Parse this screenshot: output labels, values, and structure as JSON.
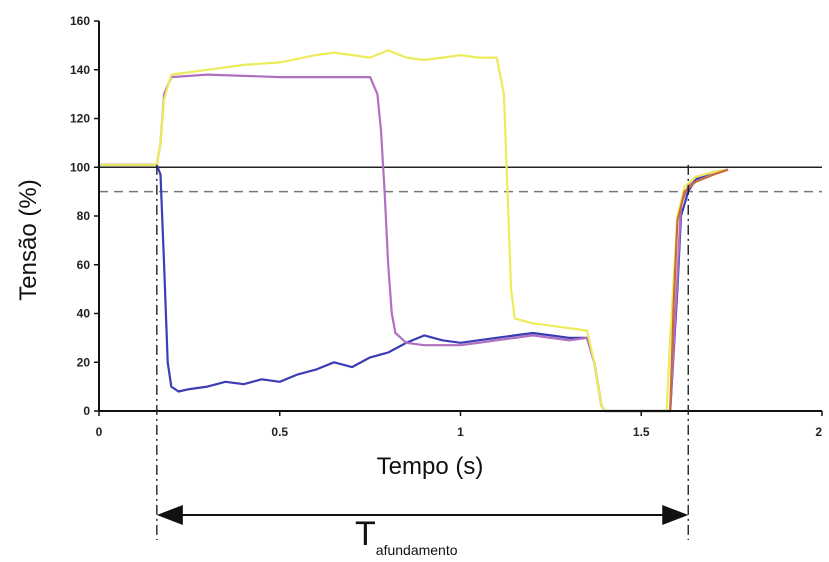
{
  "chart_data": {
    "type": "line",
    "xlabel": "Tempo (s)",
    "ylabel": "Tensão (%)",
    "xlim": [
      0,
      2
    ],
    "ylim": [
      0,
      160
    ],
    "xticks": [
      {
        "v": 0,
        "label": "0"
      },
      {
        "v": 0.5,
        "label": "0.5"
      },
      {
        "v": 1,
        "label": "1"
      },
      {
        "v": 1.5,
        "label": "1.5"
      },
      {
        "v": 2,
        "label": "2"
      }
    ],
    "yticks": [
      {
        "v": 0,
        "label": "0"
      },
      {
        "v": 20,
        "label": "20"
      },
      {
        "v": 40,
        "label": "40"
      },
      {
        "v": 60,
        "label": "60"
      },
      {
        "v": 80,
        "label": "80"
      },
      {
        "v": 100,
        "label": "100"
      },
      {
        "v": 120,
        "label": "120"
      },
      {
        "v": 140,
        "label": "140"
      },
      {
        "v": 160,
        "label": "160"
      }
    ],
    "reference_lines": [
      {
        "value": 100,
        "style": "solid",
        "color": "#222222"
      },
      {
        "value": 90,
        "style": "dashed",
        "color": "#777777"
      }
    ],
    "markers": {
      "start": 0.16,
      "end": 1.63
    },
    "duration_label": {
      "main": "T",
      "subscript": "afundamento"
    },
    "series": [
      {
        "color": "#3c3cb4",
        "points": [
          [
            0,
            101
          ],
          [
            0.1,
            101
          ],
          [
            0.16,
            101
          ],
          [
            0.17,
            97
          ],
          [
            0.18,
            60
          ],
          [
            0.19,
            20
          ],
          [
            0.2,
            10
          ],
          [
            0.22,
            8
          ],
          [
            0.25,
            9
          ],
          [
            0.3,
            10
          ],
          [
            0.35,
            12
          ],
          [
            0.4,
            11
          ],
          [
            0.45,
            13
          ],
          [
            0.5,
            12
          ],
          [
            0.55,
            15
          ],
          [
            0.6,
            17
          ],
          [
            0.65,
            20
          ],
          [
            0.7,
            18
          ],
          [
            0.75,
            22
          ],
          [
            0.8,
            24
          ],
          [
            0.85,
            28
          ],
          [
            0.9,
            31
          ],
          [
            0.95,
            29
          ],
          [
            1.0,
            28
          ],
          [
            1.05,
            29
          ],
          [
            1.1,
            30
          ],
          [
            1.15,
            31
          ],
          [
            1.2,
            32
          ],
          [
            1.25,
            31
          ],
          [
            1.3,
            30
          ],
          [
            1.35,
            30
          ],
          [
            1.37,
            20
          ],
          [
            1.39,
            2
          ],
          [
            1.4,
            0
          ],
          [
            1.58,
            0
          ],
          [
            1.6,
            50
          ],
          [
            1.61,
            80
          ],
          [
            1.63,
            90
          ],
          [
            1.65,
            95
          ],
          [
            1.7,
            98
          ],
          [
            1.74,
            99
          ]
        ]
      },
      {
        "color": "#b070c0",
        "points": [
          [
            0,
            101
          ],
          [
            0.1,
            101
          ],
          [
            0.16,
            101
          ],
          [
            0.17,
            110
          ],
          [
            0.18,
            130
          ],
          [
            0.2,
            137
          ],
          [
            0.3,
            138
          ],
          [
            0.5,
            137
          ],
          [
            0.7,
            137
          ],
          [
            0.75,
            137
          ],
          [
            0.77,
            130
          ],
          [
            0.78,
            115
          ],
          [
            0.79,
            90
          ],
          [
            0.8,
            60
          ],
          [
            0.81,
            40
          ],
          [
            0.82,
            32
          ],
          [
            0.85,
            28
          ],
          [
            0.9,
            27
          ],
          [
            1.0,
            27
          ],
          [
            1.05,
            28
          ],
          [
            1.1,
            29
          ],
          [
            1.15,
            30
          ],
          [
            1.2,
            31
          ],
          [
            1.25,
            30
          ],
          [
            1.3,
            29
          ],
          [
            1.35,
            30
          ],
          [
            1.37,
            20
          ],
          [
            1.39,
            2
          ],
          [
            1.4,
            0
          ],
          [
            1.58,
            0
          ],
          [
            1.6,
            55
          ],
          [
            1.61,
            85
          ],
          [
            1.63,
            92
          ],
          [
            1.65,
            96
          ],
          [
            1.7,
            98
          ],
          [
            1.74,
            99
          ]
        ]
      },
      {
        "color": "#ecec5a",
        "points": [
          [
            0,
            101
          ],
          [
            0.1,
            101
          ],
          [
            0.16,
            101
          ],
          [
            0.17,
            110
          ],
          [
            0.18,
            128
          ],
          [
            0.2,
            138
          ],
          [
            0.3,
            140
          ],
          [
            0.4,
            142
          ],
          [
            0.5,
            143
          ],
          [
            0.6,
            146
          ],
          [
            0.65,
            147
          ],
          [
            0.7,
            146
          ],
          [
            0.75,
            145
          ],
          [
            0.8,
            148
          ],
          [
            0.85,
            145
          ],
          [
            0.9,
            144
          ],
          [
            0.95,
            145
          ],
          [
            1.0,
            146
          ],
          [
            1.05,
            145
          ],
          [
            1.1,
            145
          ],
          [
            1.12,
            130
          ],
          [
            1.13,
            90
          ],
          [
            1.14,
            50
          ],
          [
            1.15,
            38
          ],
          [
            1.2,
            36
          ],
          [
            1.25,
            35
          ],
          [
            1.3,
            34
          ],
          [
            1.35,
            33
          ],
          [
            1.37,
            20
          ],
          [
            1.39,
            2
          ],
          [
            1.4,
            0
          ],
          [
            1.57,
            0
          ],
          [
            1.58,
            30
          ],
          [
            1.6,
            80
          ],
          [
            1.62,
            92
          ],
          [
            1.65,
            96
          ],
          [
            1.7,
            98
          ],
          [
            1.74,
            99
          ]
        ]
      },
      {
        "color": "#c86a3c",
        "points": [
          [
            1.58,
            0
          ],
          [
            1.59,
            45
          ],
          [
            1.6,
            78
          ],
          [
            1.62,
            90
          ],
          [
            1.65,
            94
          ],
          [
            1.7,
            97
          ],
          [
            1.74,
            99
          ]
        ]
      }
    ]
  }
}
